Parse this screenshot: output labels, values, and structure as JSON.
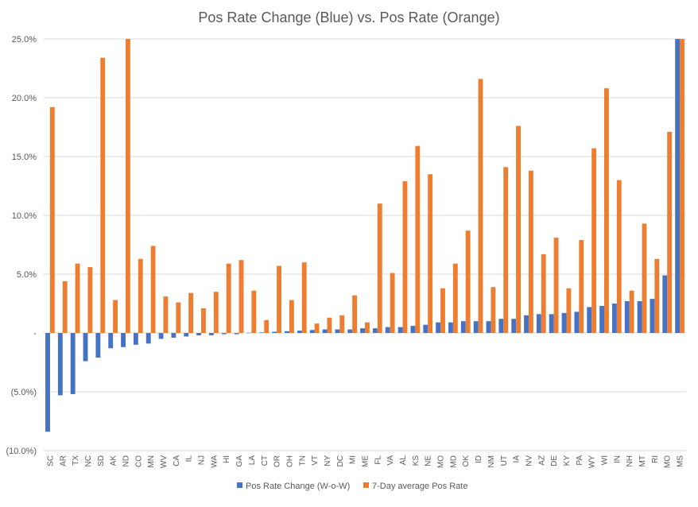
{
  "chart_data": {
    "type": "bar",
    "title": "Pos Rate Change (Blue) vs. Pos Rate (Orange)",
    "ylim": [
      -0.1,
      0.25
    ],
    "y_ticks": [
      0.25,
      0.2,
      0.15,
      0.1,
      0.05,
      0,
      -0.05,
      -0.1
    ],
    "y_tick_labels": [
      "25.0%",
      "20.0%",
      "15.0%",
      "10.0%",
      "5.0%",
      "-",
      "(5.0%)",
      "(10.0%)"
    ],
    "grid": true,
    "legend_position": "bottom",
    "categories": [
      "SC",
      "AR",
      "TX",
      "NC",
      "SD",
      "AK",
      "ND",
      "CO",
      "MN",
      "WV",
      "CA",
      "IL",
      "NJ",
      "WA",
      "HI",
      "GA",
      "LA",
      "CT",
      "OR",
      "OH",
      "TN",
      "VT",
      "NY",
      "DC",
      "MI",
      "ME",
      "FL",
      "VA",
      "AL",
      "KS",
      "NE",
      "MO",
      "MD",
      "OK",
      "ID",
      "NM",
      "UT",
      "IA",
      "NV",
      "AZ",
      "DE",
      "KY",
      "PA",
      "WY",
      "WI",
      "IN",
      "NH",
      "MT",
      "RI",
      "MO",
      "MS"
    ],
    "series": [
      {
        "name": "Pos Rate Change (W-o-W)",
        "color": "#4472C4",
        "values": [
          -0.084,
          -0.053,
          -0.052,
          -0.024,
          -0.021,
          -0.013,
          -0.012,
          -0.01,
          -0.009,
          -0.005,
          -0.004,
          -0.003,
          -0.002,
          -0.002,
          -0.001,
          -0.001,
          0.0002,
          0.0005,
          0.001,
          0.0015,
          0.002,
          0.0025,
          0.003,
          0.003,
          0.003,
          0.004,
          0.004,
          0.005,
          0.005,
          0.006,
          0.007,
          0.009,
          0.009,
          0.01,
          0.01,
          0.01,
          0.012,
          0.012,
          0.015,
          0.016,
          0.016,
          0.017,
          0.018,
          0.022,
          0.023,
          0.025,
          0.027,
          0.027,
          0.029,
          0.049,
          0.25
        ]
      },
      {
        "name": "7-Day average Pos Rate",
        "color": "#ED7D31",
        "values": [
          0.192,
          0.044,
          0.059,
          0.056,
          0.234,
          0.028,
          0.25,
          0.063,
          0.074,
          0.031,
          0.026,
          0.034,
          0.021,
          0.035,
          0.059,
          0.062,
          0.036,
          0.011,
          0.057,
          0.028,
          0.06,
          0.008,
          0.013,
          0.015,
          0.032,
          0.009,
          0.11,
          0.051,
          0.129,
          0.159,
          0.135,
          0.038,
          0.059,
          0.087,
          0.216,
          0.039,
          0.141,
          0.176,
          0.138,
          0.067,
          0.081,
          0.038,
          0.079,
          0.157,
          0.208,
          0.13,
          0.036,
          0.093,
          0.063,
          0.171,
          0.25
        ]
      }
    ]
  }
}
